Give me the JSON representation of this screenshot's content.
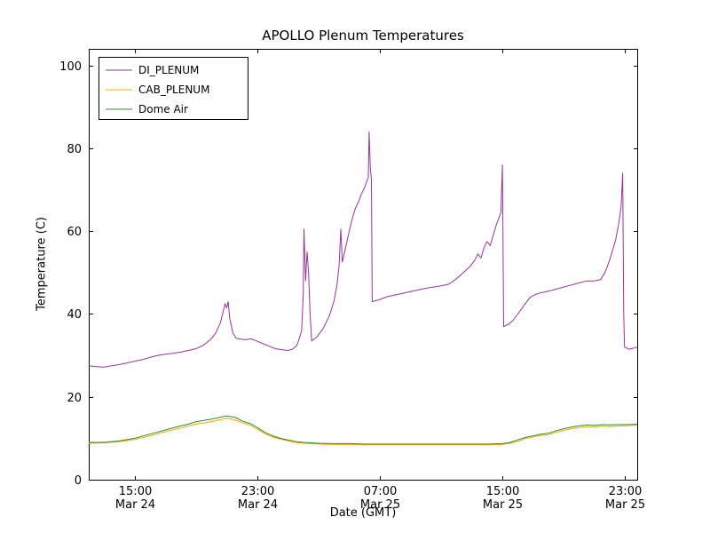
{
  "figure": {
    "background": "#ffffff",
    "axes_color": "#000000"
  },
  "chart_data": {
    "type": "line",
    "title": "APOLLO Plenum Temperatures",
    "xlabel": "Date (GMT)",
    "ylabel": "Temperature (C)",
    "x_unit": "hours since Mar 24 00:00 GMT",
    "xlim": [
      12,
      47.8
    ],
    "ylim": [
      0,
      104
    ],
    "yticks": [
      0,
      20,
      40,
      60,
      80,
      100
    ],
    "xticks": [
      {
        "x": 15,
        "label": "15:00",
        "sublabel": "Mar 24"
      },
      {
        "x": 23,
        "label": "23:00",
        "sublabel": "Mar 24"
      },
      {
        "x": 31,
        "label": "07:00",
        "sublabel": "Mar 25"
      },
      {
        "x": 39,
        "label": "15:00",
        "sublabel": "Mar 25"
      },
      {
        "x": 47,
        "label": "23:00",
        "sublabel": "Mar 25"
      }
    ],
    "grid": false,
    "legend": {
      "position": "upper left"
    },
    "series": [
      {
        "name": "DI_PLENUM",
        "color": "#993399",
        "points": [
          [
            12.0,
            27.5
          ],
          [
            12.5,
            27.3
          ],
          [
            13.0,
            27.2
          ],
          [
            13.5,
            27.5
          ],
          [
            14.0,
            27.8
          ],
          [
            14.5,
            28.2
          ],
          [
            15.0,
            28.6
          ],
          [
            15.5,
            29.0
          ],
          [
            16.0,
            29.5
          ],
          [
            16.5,
            30.0
          ],
          [
            17.0,
            30.3
          ],
          [
            17.5,
            30.5
          ],
          [
            18.0,
            30.8
          ],
          [
            18.5,
            31.2
          ],
          [
            19.0,
            31.6
          ],
          [
            19.5,
            32.5
          ],
          [
            20.0,
            34.0
          ],
          [
            20.3,
            35.5
          ],
          [
            20.6,
            38.0
          ],
          [
            20.8,
            41.0
          ],
          [
            20.9,
            42.5
          ],
          [
            21.0,
            41.5
          ],
          [
            21.1,
            43.0
          ],
          [
            21.2,
            39.0
          ],
          [
            21.4,
            35.5
          ],
          [
            21.6,
            34.2
          ],
          [
            21.8,
            34.0
          ],
          [
            22.2,
            33.8
          ],
          [
            22.6,
            34.0
          ],
          [
            23.0,
            33.4
          ],
          [
            23.4,
            32.8
          ],
          [
            23.8,
            32.2
          ],
          [
            24.2,
            31.6
          ],
          [
            24.6,
            31.4
          ],
          [
            25.0,
            31.2
          ],
          [
            25.3,
            31.5
          ],
          [
            25.6,
            32.5
          ],
          [
            25.9,
            36.0
          ],
          [
            26.0,
            45.0
          ],
          [
            26.05,
            60.5
          ],
          [
            26.15,
            48.0
          ],
          [
            26.25,
            55.0
          ],
          [
            26.35,
            50.0
          ],
          [
            26.45,
            40.0
          ],
          [
            26.55,
            33.5
          ],
          [
            26.9,
            34.5
          ],
          [
            27.3,
            36.5
          ],
          [
            27.7,
            39.5
          ],
          [
            28.0,
            43.0
          ],
          [
            28.2,
            47.0
          ],
          [
            28.35,
            52.0
          ],
          [
            28.45,
            60.5
          ],
          [
            28.55,
            52.5
          ],
          [
            28.7,
            55.0
          ],
          [
            28.85,
            57.5
          ],
          [
            29.0,
            60.0
          ],
          [
            29.2,
            63.0
          ],
          [
            29.4,
            65.5
          ],
          [
            29.6,
            67.0
          ],
          [
            29.8,
            69.0
          ],
          [
            30.0,
            70.5
          ],
          [
            30.15,
            72.0
          ],
          [
            30.25,
            73.0
          ],
          [
            30.3,
            84.0
          ],
          [
            30.38,
            75.0
          ],
          [
            30.45,
            72.5
          ],
          [
            30.5,
            43.0
          ],
          [
            31.0,
            43.5
          ],
          [
            31.5,
            44.2
          ],
          [
            32.0,
            44.6
          ],
          [
            32.5,
            45.0
          ],
          [
            33.0,
            45.4
          ],
          [
            33.5,
            45.8
          ],
          [
            34.0,
            46.2
          ],
          [
            34.5,
            46.5
          ],
          [
            35.0,
            46.8
          ],
          [
            35.5,
            47.2
          ],
          [
            36.0,
            48.5
          ],
          [
            36.3,
            49.5
          ],
          [
            36.6,
            50.5
          ],
          [
            36.9,
            51.5
          ],
          [
            37.2,
            53.0
          ],
          [
            37.4,
            54.5
          ],
          [
            37.6,
            53.5
          ],
          [
            37.8,
            56.0
          ],
          [
            38.0,
            57.5
          ],
          [
            38.2,
            56.5
          ],
          [
            38.4,
            59.0
          ],
          [
            38.6,
            61.5
          ],
          [
            38.75,
            63.0
          ],
          [
            38.9,
            64.5
          ],
          [
            39.0,
            76.0
          ],
          [
            39.08,
            37.0
          ],
          [
            39.4,
            37.5
          ],
          [
            39.7,
            38.5
          ],
          [
            40.0,
            40.0
          ],
          [
            40.4,
            42.0
          ],
          [
            40.8,
            44.0
          ],
          [
            41.2,
            44.8
          ],
          [
            41.6,
            45.2
          ],
          [
            42.0,
            45.5
          ],
          [
            42.5,
            46.0
          ],
          [
            43.0,
            46.5
          ],
          [
            43.5,
            47.0
          ],
          [
            44.0,
            47.5
          ],
          [
            44.5,
            48.0
          ],
          [
            45.0,
            48.0
          ],
          [
            45.4,
            48.3
          ],
          [
            45.7,
            50.0
          ],
          [
            46.0,
            53.0
          ],
          [
            46.2,
            55.5
          ],
          [
            46.4,
            58.0
          ],
          [
            46.6,
            62.0
          ],
          [
            46.75,
            66.0
          ],
          [
            46.85,
            74.0
          ],
          [
            46.92,
            40.0
          ],
          [
            46.97,
            32.0
          ],
          [
            47.3,
            31.5
          ],
          [
            47.8,
            32.0
          ]
        ]
      },
      {
        "name": "CAB_PLENUM",
        "color": "#ffa500",
        "points": [
          [
            12.0,
            8.8
          ],
          [
            13.0,
            8.9
          ],
          [
            14.0,
            9.2
          ],
          [
            15.0,
            9.7
          ],
          [
            16.0,
            10.6
          ],
          [
            17.0,
            11.6
          ],
          [
            18.0,
            12.5
          ],
          [
            19.0,
            13.4
          ],
          [
            20.0,
            14.0
          ],
          [
            20.5,
            14.4
          ],
          [
            21.0,
            14.8
          ],
          [
            21.5,
            14.5
          ],
          [
            22.0,
            13.8
          ],
          [
            22.5,
            13.2
          ],
          [
            23.0,
            12.2
          ],
          [
            23.5,
            11.1
          ],
          [
            24.0,
            10.3
          ],
          [
            24.5,
            9.8
          ],
          [
            25.0,
            9.4
          ],
          [
            25.5,
            9.0
          ],
          [
            26.0,
            8.8
          ],
          [
            27.0,
            8.6
          ],
          [
            28.0,
            8.5
          ],
          [
            29.0,
            8.5
          ],
          [
            30.0,
            8.4
          ],
          [
            31.0,
            8.4
          ],
          [
            32.0,
            8.4
          ],
          [
            33.0,
            8.4
          ],
          [
            34.0,
            8.4
          ],
          [
            35.0,
            8.4
          ],
          [
            36.0,
            8.4
          ],
          [
            37.0,
            8.4
          ],
          [
            38.0,
            8.4
          ],
          [
            39.0,
            8.5
          ],
          [
            39.5,
            8.8
          ],
          [
            40.0,
            9.3
          ],
          [
            40.5,
            9.9
          ],
          [
            41.0,
            10.3
          ],
          [
            41.5,
            10.7
          ],
          [
            42.0,
            10.9
          ],
          [
            42.5,
            11.4
          ],
          [
            43.0,
            11.9
          ],
          [
            43.5,
            12.3
          ],
          [
            44.0,
            12.6
          ],
          [
            44.5,
            12.8
          ],
          [
            45.0,
            12.7
          ],
          [
            45.5,
            12.9
          ],
          [
            46.0,
            12.8
          ],
          [
            46.5,
            12.9
          ],
          [
            47.0,
            13.0
          ],
          [
            47.8,
            13.1
          ]
        ]
      },
      {
        "name": "Dome Air",
        "color": "#2e8b2e",
        "points": [
          [
            12.0,
            9.0
          ],
          [
            13.0,
            9.0
          ],
          [
            14.0,
            9.4
          ],
          [
            15.0,
            10.0
          ],
          [
            16.0,
            11.0
          ],
          [
            17.0,
            12.0
          ],
          [
            18.0,
            13.0
          ],
          [
            18.5,
            13.4
          ],
          [
            19.0,
            14.0
          ],
          [
            19.5,
            14.3
          ],
          [
            20.0,
            14.6
          ],
          [
            20.5,
            15.0
          ],
          [
            21.0,
            15.4
          ],
          [
            21.3,
            15.2
          ],
          [
            21.6,
            15.0
          ],
          [
            22.0,
            14.2
          ],
          [
            22.5,
            13.6
          ],
          [
            23.0,
            12.6
          ],
          [
            23.5,
            11.4
          ],
          [
            24.0,
            10.6
          ],
          [
            24.5,
            10.0
          ],
          [
            25.0,
            9.6
          ],
          [
            25.5,
            9.2
          ],
          [
            26.0,
            9.0
          ],
          [
            27.0,
            8.8
          ],
          [
            28.0,
            8.7
          ],
          [
            29.0,
            8.7
          ],
          [
            30.0,
            8.6
          ],
          [
            31.0,
            8.6
          ],
          [
            32.0,
            8.6
          ],
          [
            33.0,
            8.6
          ],
          [
            34.0,
            8.6
          ],
          [
            35.0,
            8.6
          ],
          [
            36.0,
            8.6
          ],
          [
            37.0,
            8.6
          ],
          [
            38.0,
            8.6
          ],
          [
            39.0,
            8.7
          ],
          [
            39.5,
            9.0
          ],
          [
            40.0,
            9.6
          ],
          [
            40.5,
            10.2
          ],
          [
            41.0,
            10.6
          ],
          [
            41.5,
            11.0
          ],
          [
            42.0,
            11.2
          ],
          [
            42.5,
            11.8
          ],
          [
            43.0,
            12.3
          ],
          [
            43.5,
            12.7
          ],
          [
            44.0,
            13.0
          ],
          [
            44.5,
            13.2
          ],
          [
            45.0,
            13.1
          ],
          [
            45.5,
            13.3
          ],
          [
            46.0,
            13.2
          ],
          [
            46.5,
            13.3
          ],
          [
            47.0,
            13.3
          ],
          [
            47.8,
            13.4
          ]
        ]
      }
    ]
  }
}
